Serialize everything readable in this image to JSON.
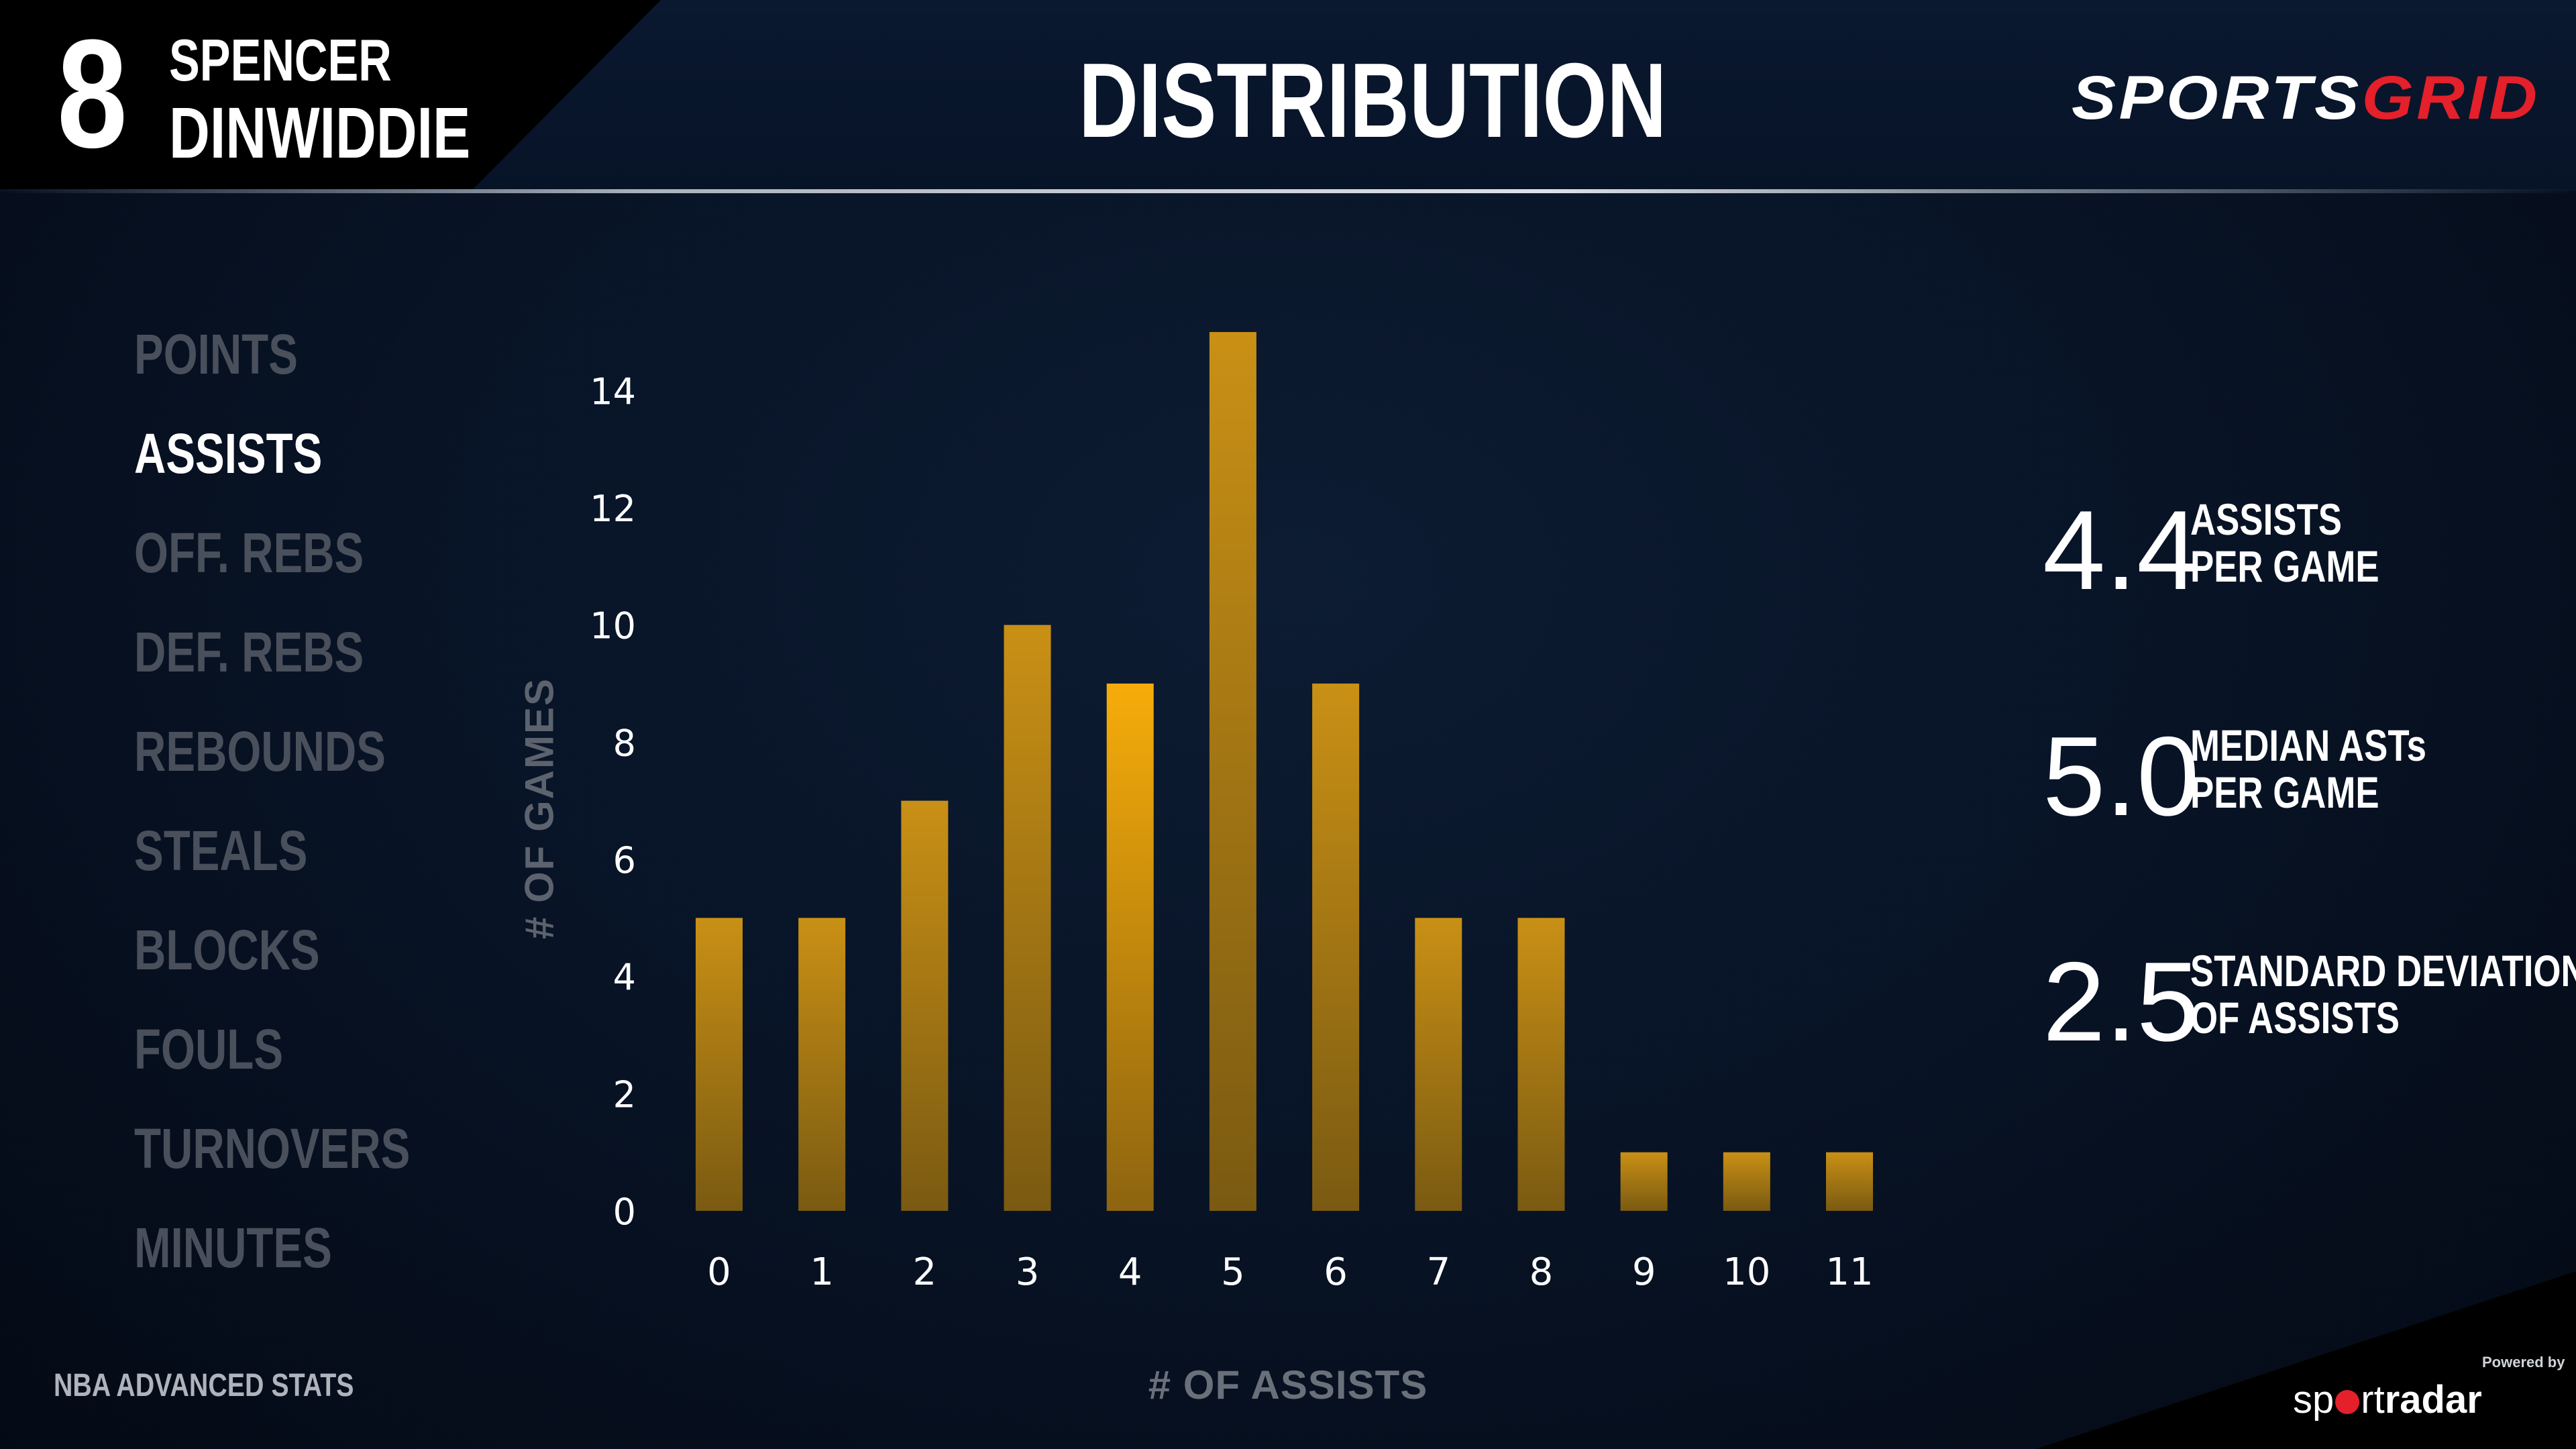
{
  "header": {
    "jersey_number": "8",
    "player_first": "SPENCER",
    "player_last": "DINWIDDIE",
    "title": "DISTRIBUTION",
    "brand_part1": "SPORTS",
    "brand_part2": "GRID",
    "brand_colors": {
      "primary": "#ffffff",
      "accent": "#e4202a"
    }
  },
  "stat_nav": [
    {
      "label": "POINTS",
      "active": false
    },
    {
      "label": "ASSISTS",
      "active": true
    },
    {
      "label": "OFF. REBS",
      "active": false
    },
    {
      "label": "DEF. REBS",
      "active": false
    },
    {
      "label": "REBOUNDS",
      "active": false
    },
    {
      "label": "STEALS",
      "active": false
    },
    {
      "label": "BLOCKS",
      "active": false
    },
    {
      "label": "FOULS",
      "active": false
    },
    {
      "label": "TURNOVERS",
      "active": false
    },
    {
      "label": "MINUTES",
      "active": false
    }
  ],
  "chart_data": {
    "type": "bar",
    "categories": [
      "0",
      "1",
      "2",
      "3",
      "4",
      "5",
      "6",
      "7",
      "8",
      "9",
      "10",
      "11"
    ],
    "values": [
      5,
      5,
      7,
      10,
      9,
      15,
      9,
      5,
      5,
      1,
      1,
      1
    ],
    "xlabel": "# OF ASSISTS",
    "ylabel": "# OF GAMES",
    "ylim": [
      0,
      15.4
    ],
    "yticks": [
      0,
      2,
      4,
      6,
      8,
      10,
      12,
      14
    ],
    "grid": true,
    "highlight_category": "4",
    "bar_color": "#c08a12",
    "highlight_color": "#f2a80c"
  },
  "kpis": [
    {
      "value": "4.4",
      "label_line1": "ASSISTS",
      "label_line2": "PER GAME"
    },
    {
      "value": "5.0",
      "label_line1": "MEDIAN ASTs",
      "label_line2": "PER GAME"
    },
    {
      "value": "2.5",
      "label_line1": "STANDARD DEVIATION",
      "label_line2": "OF ASSISTS"
    }
  ],
  "footer": {
    "source": "NBA ADVANCED STATS",
    "powered_by": "Powered by",
    "partner_part1": "sp",
    "partner_part2": "rt",
    "partner_part3": "radar"
  }
}
